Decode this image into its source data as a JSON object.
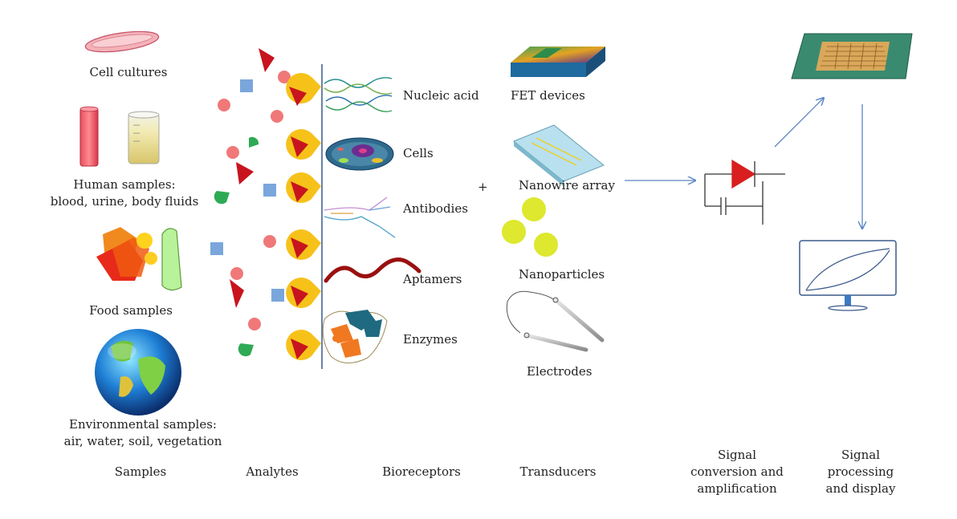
{
  "samples": {
    "cell_cultures": "Cell cultures",
    "human_line1": "Human samples:",
    "human_line2": "blood, urine, body fluids",
    "food": "Food samples",
    "env_line1": "Environmental samples:",
    "env_line2": "air, water, soil, vegetation"
  },
  "bioreceptors": {
    "nucleic_acid": "Nucleic acid",
    "cells": "Cells",
    "antibodies": "Antibodies",
    "aptamers": "Aptamers",
    "enzymes": "Enzymes"
  },
  "plus": "+",
  "transducers": {
    "fet": "FET devices",
    "nanowire": "Nanowire array",
    "nanoparticles": "Nanoparticles",
    "electrodes": "Electrodes"
  },
  "columns": {
    "samples": "Samples",
    "analytes": "Analytes",
    "bioreceptors": "Bioreceptors",
    "transducers": "Transducers",
    "signal_conv_1": "Signal",
    "signal_conv_2": "conversion and",
    "signal_conv_3": "amplification",
    "signal_proc_1": "Signal",
    "signal_proc_2": "processing",
    "signal_proc_3": "and display"
  },
  "colors": {
    "analyte_circle": "#f07878",
    "analyte_square": "#7aa6dc",
    "analyte_triangle": "#c8141e",
    "analyte_half_disc": "#2eaa55",
    "receptor_pac": "#f6c21a",
    "arrow": "#5b84c4",
    "nanoparticle": "#dde82e"
  }
}
